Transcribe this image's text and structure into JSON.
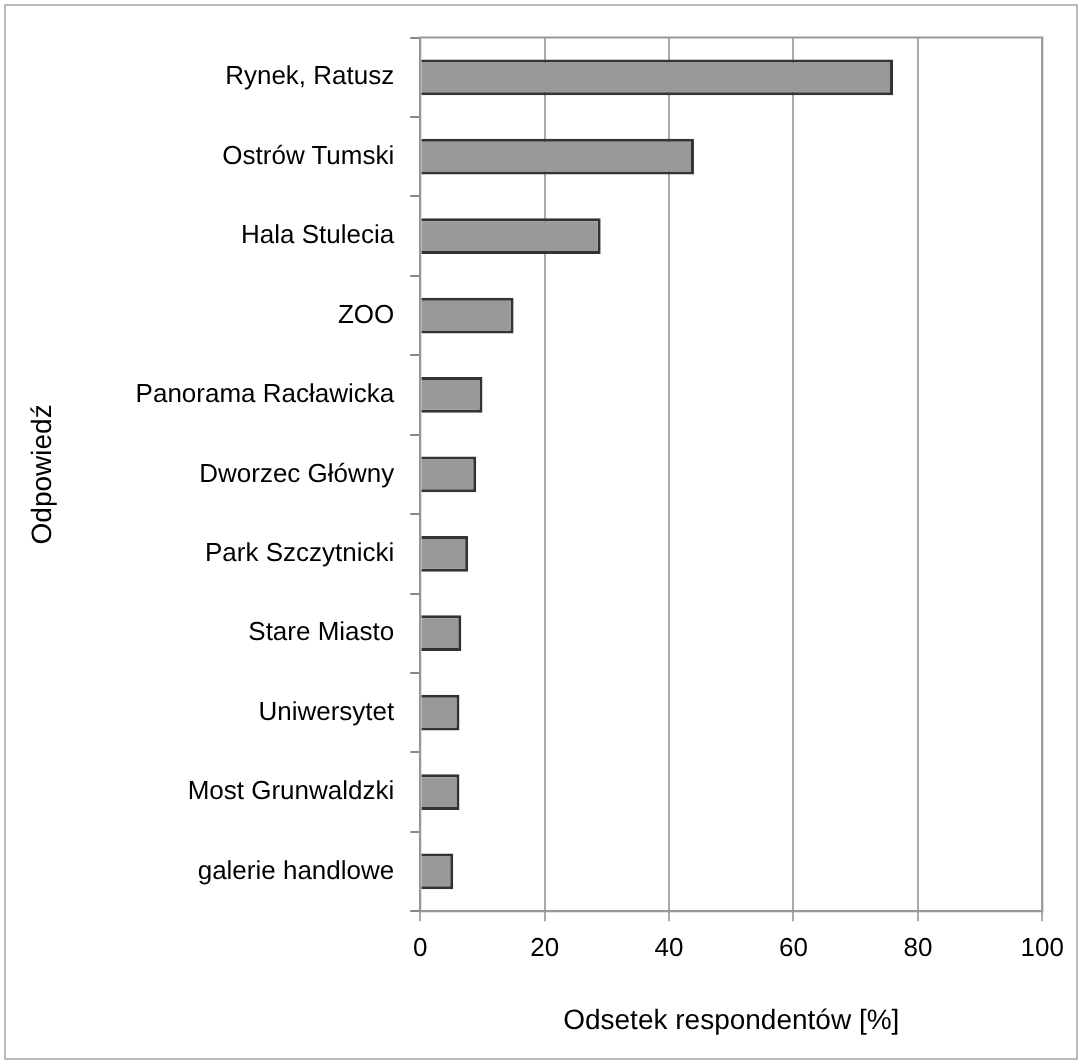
{
  "chart_data": {
    "type": "bar",
    "orientation": "horizontal",
    "xlabel": "Odsetek respondentów [%]",
    "ylabel": "Odpowiedź",
    "categories": [
      "Rynek, Ratusz",
      "Ostrów Tumski",
      "Hala Stulecia",
      "ZOO",
      "Panorama Racławicka",
      "Dworzec Główny",
      "Park Szczytnicki",
      "Stare Miasto",
      "Uniwersytet",
      "Most Grunwaldzki",
      "galerie handlowe"
    ],
    "values": [
      76,
      44,
      29,
      15,
      10,
      9,
      7.7,
      6.6,
      6.3,
      6.3,
      5.3
    ],
    "color": "#999999",
    "xlim": [
      0,
      100
    ],
    "xticks": [
      0,
      20,
      40,
      60,
      80,
      100
    ],
    "grid": "x",
    "legend": false
  }
}
